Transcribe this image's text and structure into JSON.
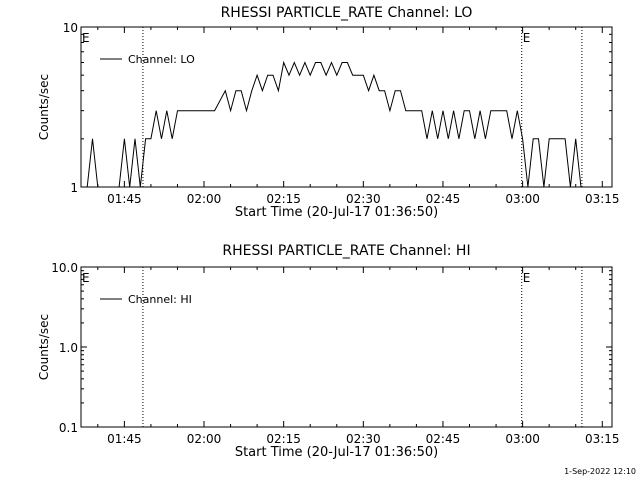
{
  "footer": {
    "timestamp": "1-Sep-2022 12:10"
  },
  "chart_data": [
    {
      "type": "line",
      "title": "RHESSI PARTICLE_RATE Channel: LO",
      "xlabel": "Start Time (20-Jul-17 01:36:50)",
      "ylabel": "Counts/sec",
      "yscale": "log",
      "ylim": [
        1,
        10
      ],
      "xlim_minutes_after_start": [
        0,
        100
      ],
      "x_tick_labels": [
        "01:45",
        "02:00",
        "02:15",
        "02:30",
        "02:45",
        "03:00",
        "03:15"
      ],
      "y_tick_labels": [
        "1",
        "10"
      ],
      "legend": {
        "entries": [
          "Channel: LO"
        ],
        "placement": "top-left"
      },
      "event_markers": [
        {
          "label": "E",
          "time": "01:36:50"
        },
        {
          "label": "E",
          "time": "02:59:50"
        }
      ],
      "vertical_dotted_lines": [
        "01:48:30",
        "02:59:50",
        "03:11:10"
      ],
      "series": [
        {
          "name": "Channel: LO",
          "x": [
            "01:38",
            "01:39",
            "01:40",
            "01:41",
            "01:44",
            "01:45",
            "01:46",
            "01:47",
            "01:48",
            "01:49",
            "01:50",
            "01:51",
            "01:52",
            "01:53",
            "01:54",
            "01:55",
            "01:56",
            "01:58",
            "02:00",
            "02:02",
            "02:04",
            "02:05",
            "02:06",
            "02:07",
            "02:08",
            "02:09",
            "02:10",
            "02:11",
            "02:12",
            "02:13",
            "02:14",
            "02:15",
            "02:16",
            "02:17",
            "02:18",
            "02:19",
            "02:20",
            "02:21",
            "02:22",
            "02:23",
            "02:24",
            "02:25",
            "02:26",
            "02:27",
            "02:28",
            "02:29",
            "02:30",
            "02:31",
            "02:32",
            "02:33",
            "02:34",
            "02:35",
            "02:36",
            "02:37",
            "02:38",
            "02:39",
            "02:40",
            "02:41",
            "02:42",
            "02:43",
            "02:44",
            "02:45",
            "02:46",
            "02:47",
            "02:48",
            "02:49",
            "02:50",
            "02:51",
            "02:52",
            "02:53",
            "02:54",
            "02:55",
            "02:56",
            "02:57",
            "02:58",
            "02:59",
            "03:00",
            "03:01",
            "03:02",
            "03:03",
            "03:04",
            "03:05",
            "03:06",
            "03:07",
            "03:08",
            "03:09",
            "03:10",
            "03:11"
          ],
          "values": [
            1,
            2,
            1,
            1,
            1,
            2,
            1,
            2,
            1,
            2,
            2,
            3,
            2,
            3,
            2,
            3,
            3,
            3,
            3,
            3,
            4,
            3,
            4,
            4,
            3,
            4,
            5,
            4,
            5,
            5,
            4,
            6,
            5,
            6,
            5,
            6,
            5,
            6,
            6,
            5,
            6,
            5,
            6,
            6,
            5,
            5,
            5,
            4,
            5,
            4,
            4,
            3,
            4,
            4,
            3,
            3,
            3,
            3,
            2,
            3,
            2,
            3,
            2,
            3,
            2,
            3,
            3,
            2,
            3,
            2,
            3,
            3,
            3,
            3,
            2,
            3,
            2,
            1,
            2,
            2,
            1,
            2,
            2,
            2,
            2,
            1,
            2,
            1
          ]
        }
      ]
    },
    {
      "type": "line",
      "title": "RHESSI PARTICLE_RATE Channel: HI",
      "xlabel": "Start Time (20-Jul-17 01:36:50)",
      "ylabel": "Counts/sec",
      "yscale": "log",
      "ylim": [
        0.1,
        10.0
      ],
      "xlim_minutes_after_start": [
        0,
        100
      ],
      "x_tick_labels": [
        "01:45",
        "02:00",
        "02:15",
        "02:30",
        "02:45",
        "03:00",
        "03:15"
      ],
      "y_tick_labels": [
        "0.1",
        "1.0",
        "10.0"
      ],
      "legend": {
        "entries": [
          "Channel: HI"
        ],
        "placement": "top-left"
      },
      "event_markers": [
        {
          "label": "E",
          "time": "01:36:50"
        },
        {
          "label": "E",
          "time": "02:59:50"
        }
      ],
      "vertical_dotted_lines": [
        "01:48:30",
        "02:59:50",
        "03:11:10"
      ],
      "series": [
        {
          "name": "Channel: HI",
          "x": [],
          "values": []
        }
      ]
    }
  ]
}
